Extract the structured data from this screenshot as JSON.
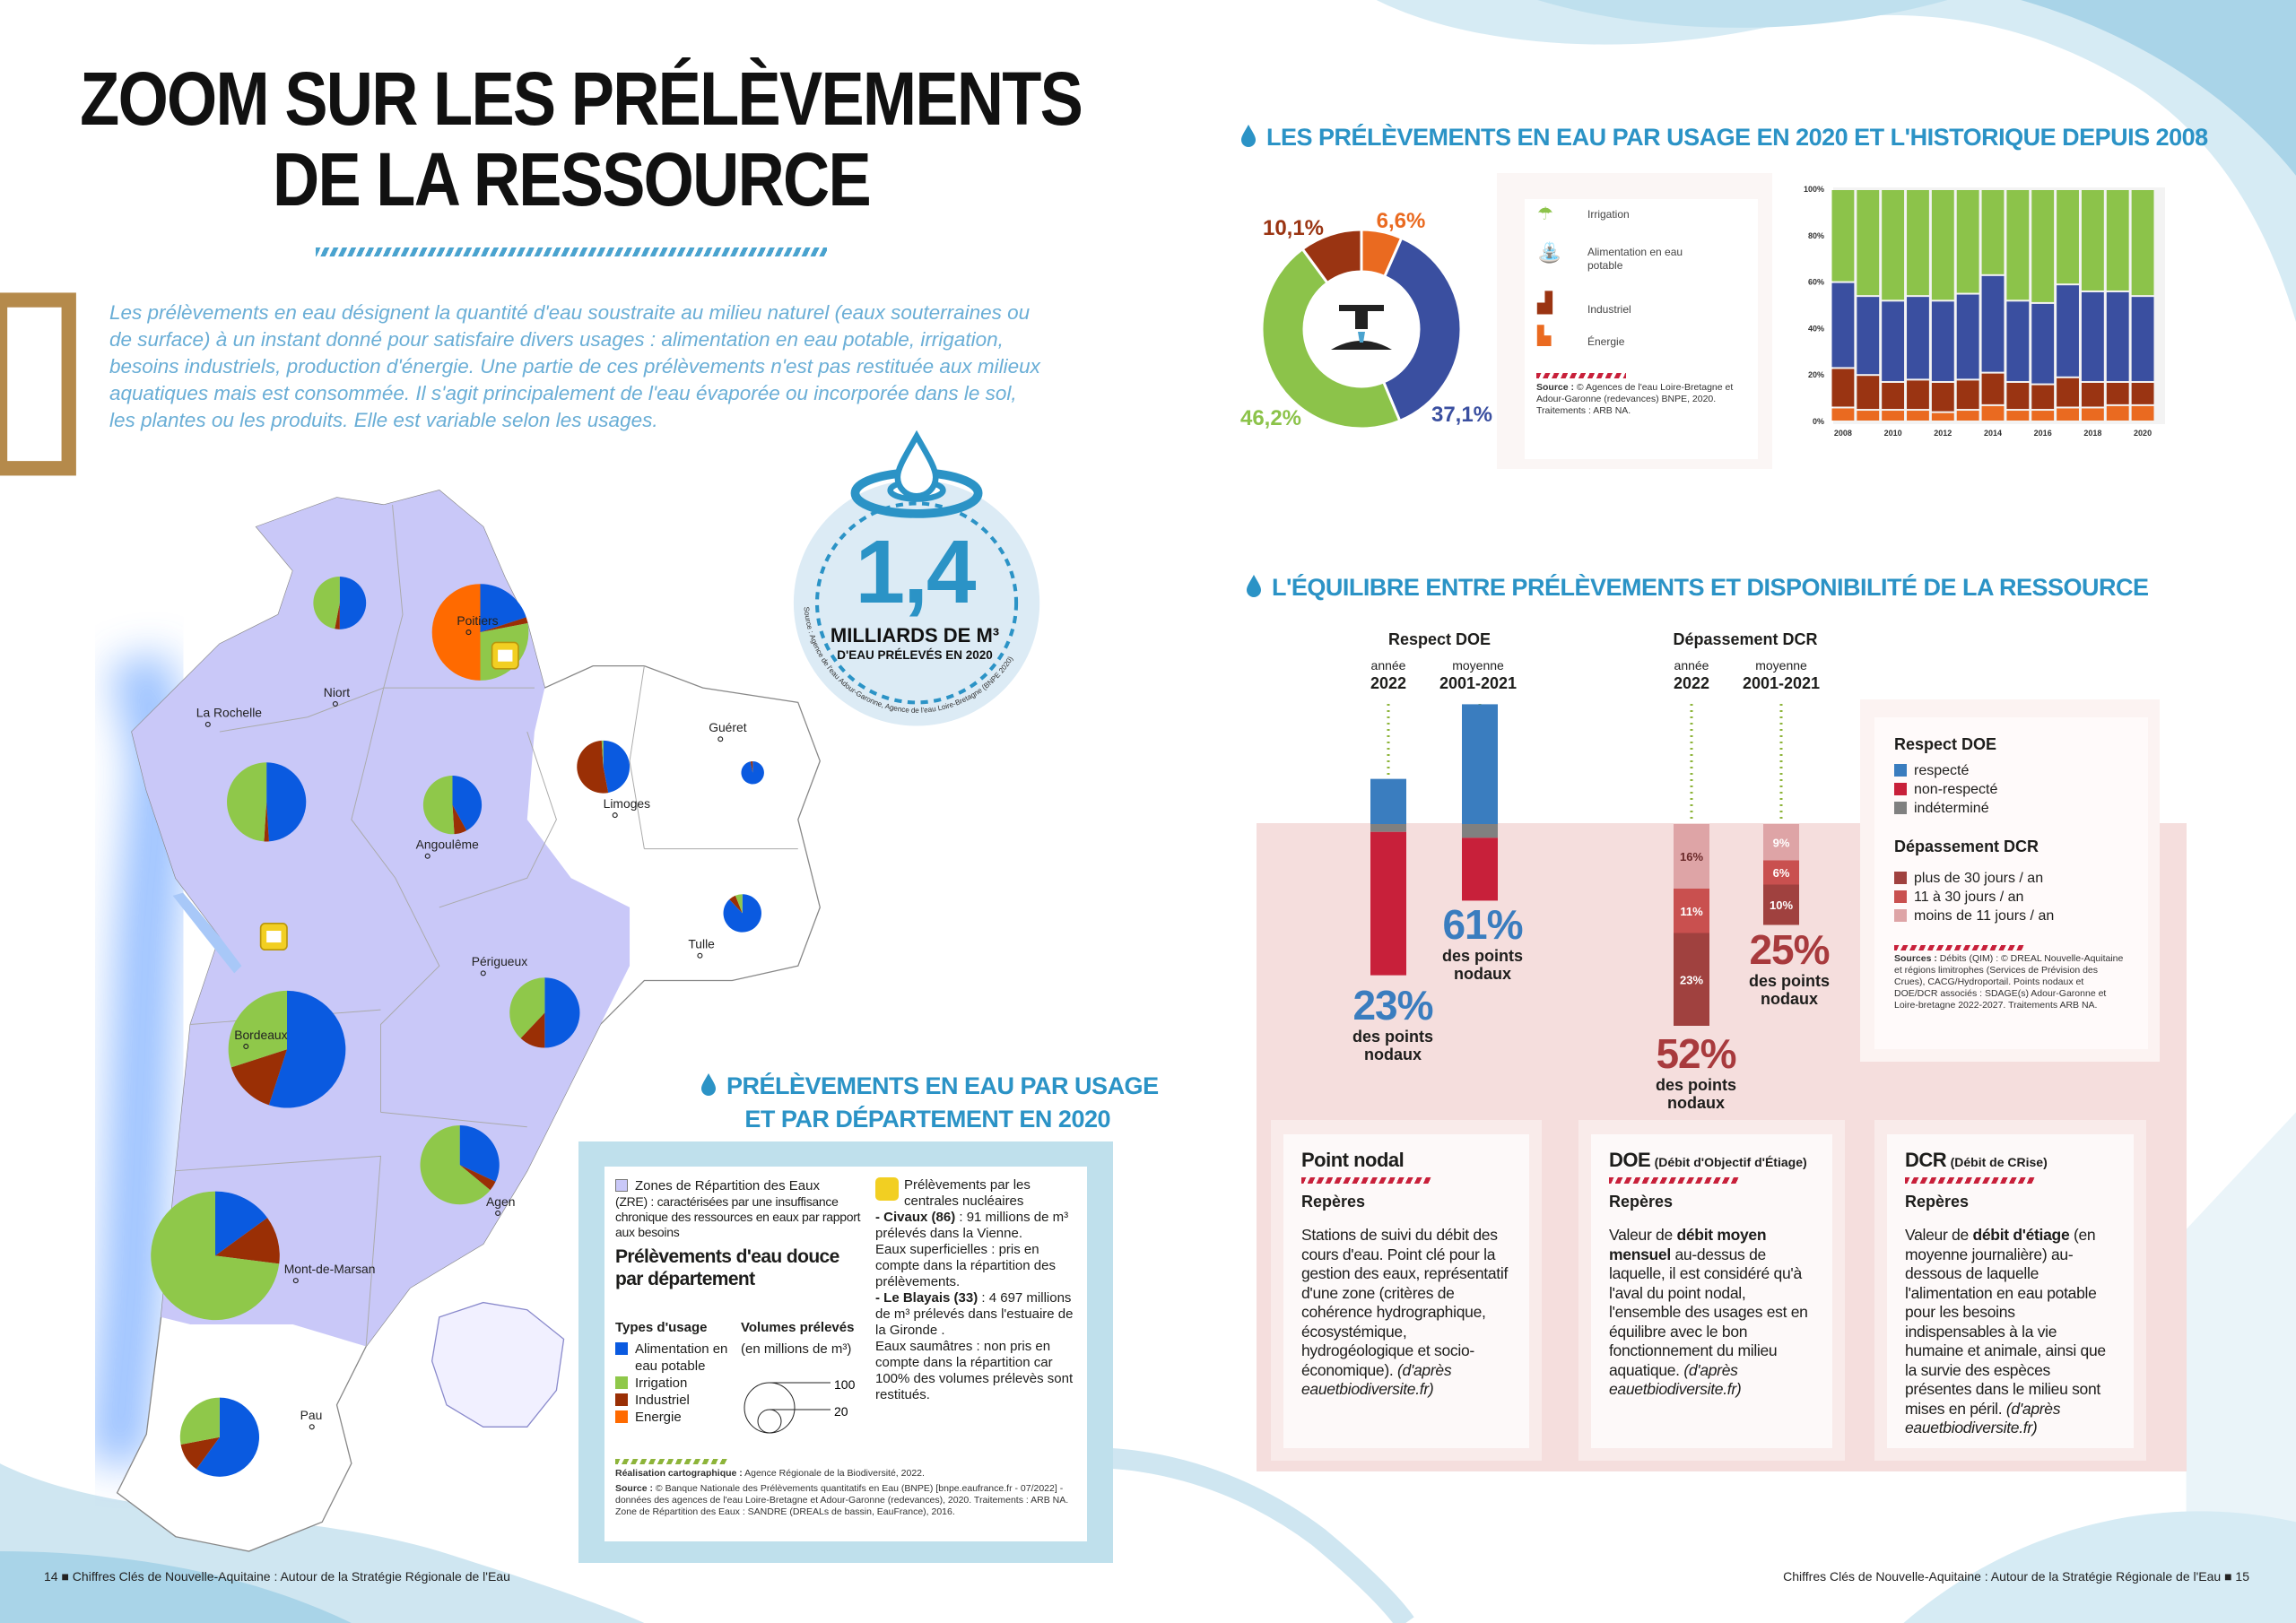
{
  "page_title": [
    "ZOOM SUR LES PRÉLÈVEMENTS",
    "DE LA RESSOURCE"
  ],
  "intro": "Les prélèvements en eau désignent la quantité d'eau soustraite au milieu naturel (eaux souterraines ou de surface) à un instant donné pour satisfaire divers usages : alimentation en eau potable, irrigation, besoins industriels, production d'énergie. Une partie de ces prélèvements n'est pas restituée aux milieux aquatiques mais est consommée. Il s'agit principalement de l'eau évaporée ou incorporée dans le sol, les plantes ou les produits. Elle est variable selon les usages.",
  "key_figure": {
    "value": "1,4",
    "unit": "MILLIARDS DE M³",
    "subtitle": "D'EAU PRÉLEVÉS EN 2020",
    "source": "Source : Agence de l'eau Adour-Garonne, Agence de l'eau Loire-Bretagne (BNPE 2020)"
  },
  "colors": {
    "alimentation": "#0a5ae0",
    "irrigation": "#8fc84a",
    "industriel": "#9a2f05",
    "energie": "#ff6a00",
    "zre": "#c9c8f8",
    "title_blue": "#2b93c6"
  },
  "map": {
    "title": [
      "PRÉLÈVEMENTS EN EAU PAR USAGE",
      "ET PAR DÉPARTEMENT EN 2020"
    ],
    "cities": [
      "Niort",
      "Poitiers",
      "La Rochelle",
      "Angoulême",
      "Limoges",
      "Guéret",
      "Tulle",
      "Périgueux",
      "Bordeaux",
      "Agen",
      "Mont-de-Marsan",
      "Pau"
    ],
    "pies": [
      {
        "city": "Niort",
        "volume": 48,
        "alimentation": 50,
        "industriel": 3,
        "irrigation": 47,
        "energie": 0
      },
      {
        "city": "Poitiers",
        "volume": 161,
        "alimentation": 20,
        "industriel": 2,
        "irrigation": 28,
        "energie": 50
      },
      {
        "city": "La Rochelle",
        "volume": 108,
        "alimentation": 49,
        "industriel": 2,
        "irrigation": 49,
        "energie": 0
      },
      {
        "city": "Angoulême",
        "volume": 59,
        "alimentation": 42,
        "industriel": 7,
        "irrigation": 51,
        "energie": 0
      },
      {
        "city": "Limoges",
        "volume": 48,
        "alimentation": 47,
        "industriel": 52,
        "irrigation": 1,
        "energie": 0
      },
      {
        "city": "Guéret",
        "volume": 9,
        "alimentation": 97,
        "industriel": 3,
        "irrigation": 0,
        "energie": 0
      },
      {
        "city": "Tulle",
        "volume": 25,
        "alimentation": 88,
        "industriel": 6,
        "irrigation": 6,
        "energie": 0
      },
      {
        "city": "Périgueux",
        "volume": 85,
        "alimentation": 50,
        "industriel": 12,
        "irrigation": 38,
        "energie": 0
      },
      {
        "city": "Bordeaux",
        "volume": 237,
        "alimentation": 55,
        "industriel": 15,
        "irrigation": 30,
        "energie": 0
      },
      {
        "city": "Agen",
        "volume": 108,
        "alimentation": 32,
        "industriel": 4,
        "irrigation": 64,
        "energie": 0
      },
      {
        "city": "Mont-de-Marsan",
        "volume": 286,
        "alimentation": 15,
        "industriel": 12,
        "irrigation": 73,
        "energie": 0
      },
      {
        "city": "Pau",
        "volume": 108,
        "alimentation": 60,
        "industriel": 12,
        "irrigation": 28,
        "energie": 0
      }
    ],
    "legend": {
      "zre_title": "Zones de Répartition des Eaux",
      "zre_text": "(ZRE) : caractérisées par une insuffisance chronique des ressources en eaux par rapport aux besoins",
      "heading": "Prélèvements d'eau douce par département",
      "types_label": "Types d'usage",
      "volumes_label": "Volumes prélevés",
      "volumes_unit": "(en millions de m³)",
      "types": [
        "Alimentation en eau potable",
        "Irrigation",
        "Industriel",
        "Energie"
      ],
      "size_values": [
        "100",
        "20"
      ],
      "nuclear_title": "Prélèvements par les centrales nucléaires",
      "civaux_name": "- Civaux (86)",
      "civaux_text": " : 91 millions de m³ prélevés dans la Vienne.",
      "superficielles": "Eaux superficielles : pris en compte dans la répartition des prélèvements.",
      "blayais_name": "- Le Blayais (33)",
      "blayais_text": " : 4 697 millions de m³ prélevés dans l'estuaire de la Gironde .",
      "saumatres": "Eaux saumâtres : non pris en compte dans la répartition car 100% des volumes prélevès sont restitués.",
      "realisation_label": "Réalisation cartographique :",
      "realisation_text": " Agence Régionale de la Biodiversité, 2022.",
      "source_label": "Source :",
      "source_text": " © Banque Nationale des Prélèvements quantitatifs en Eau (BNPE) [bnpe.eaufrance.fr - 07/2022] - données des agences de l'eau Loire-Bretagne et Adour-Garonne (redevances), 2020. Traitements : ARB NA. Zone de Répartition des Eaux : SANDRE (DREALs de bassin, EauFrance), 2016."
    }
  },
  "usage": {
    "title": "LES PRÉLÈVEMENTS EN EAU PAR USAGE EN 2020 ET L'HISTORIQUE DEPUIS 2008",
    "legend": [
      "Irrigation",
      "Alimentation en eau potable",
      "Industriel",
      "Énergie"
    ],
    "source_label": "Source :",
    "source_text": " © Agences de l'eau Loire-Bretagne et Adour-Garonne (redevances) BNPE, 2020. Traitements : ARB NA.",
    "donut_colors": {
      "irrigation": "#8cc34a",
      "alimentation": "#3a4fa0",
      "industriel": "#9a3412",
      "energie": "#ea6a20"
    }
  },
  "chart_data": [
    {
      "type": "pie",
      "variant": "donut",
      "categories": [
        "Énergie",
        "Alimentation en eau potable",
        "Irrigation",
        "Industriel"
      ],
      "values": [
        6.6,
        37.1,
        46.2,
        10.1
      ],
      "labels": [
        "6,6%",
        "37,1%",
        "46,2%",
        "10,1%"
      ]
    },
    {
      "type": "bar",
      "stacked": true,
      "normalized": true,
      "categories": [
        "2008",
        "2009",
        "2010",
        "2011",
        "2012",
        "2013",
        "2014",
        "2015",
        "2016",
        "2017",
        "2018",
        "2019",
        "2020"
      ],
      "tick_labels_x": [
        "2008",
        "2010",
        "2012",
        "2014",
        "2016",
        "2018",
        "2020"
      ],
      "tick_labels_y": [
        "0%",
        "20%",
        "40%",
        "60%",
        "80%",
        "100%"
      ],
      "ylim": [
        0,
        100
      ],
      "series": [
        {
          "name": "Énergie",
          "values": [
            6,
            5,
            5,
            5,
            4,
            5,
            7,
            5,
            5,
            6,
            6,
            7,
            7
          ]
        },
        {
          "name": "Industriel",
          "values": [
            17,
            15,
            12,
            13,
            13,
            13,
            14,
            12,
            11,
            13,
            11,
            10,
            10
          ]
        },
        {
          "name": "Alimentation en eau potable",
          "values": [
            37,
            34,
            35,
            36,
            35,
            37,
            42,
            35,
            35,
            40,
            39,
            39,
            37
          ]
        },
        {
          "name": "Irrigation",
          "values": [
            40,
            46,
            48,
            46,
            48,
            45,
            37,
            48,
            49,
            41,
            44,
            44,
            46
          ]
        }
      ]
    },
    {
      "type": "bar",
      "stacked": true,
      "title": "Respect DOE",
      "categories": [
        "année 2022",
        "moyenne 2001-2021"
      ],
      "series": [
        {
          "name": "respecté",
          "values": [
            23,
            61
          ]
        },
        {
          "name": "indéterminé",
          "values": [
            4,
            7
          ]
        },
        {
          "name": "non-respecté",
          "values": [
            73,
            32
          ]
        }
      ]
    },
    {
      "type": "bar",
      "stacked": true,
      "title": "Dépassement DCR",
      "categories": [
        "année 2022",
        "moyenne 2001-2021"
      ],
      "series": [
        {
          "name": "moins de 11 jours / an",
          "values": [
            16,
            9
          ]
        },
        {
          "name": "11 à 30 jours / an",
          "values": [
            11,
            6
          ]
        },
        {
          "name": "plus de 30 jours / an",
          "values": [
            23,
            10
          ]
        }
      ]
    }
  ],
  "balance": {
    "title": "L'ÉQUILIBRE ENTRE PRÉLÈVEMENTS ET DISPONIBILITÉ DE LA RESSOURCE",
    "doe_title": "Respect DOE",
    "dcr_title": "Dépassement DCR",
    "col_year_small": "année",
    "col_year": "2022",
    "col_avg_small": "moyenne",
    "col_avg": "2001-2021",
    "doe_2022_pct": "23%",
    "doe_avg_pct": "61%",
    "dcr_2022_pct": "52%",
    "dcr_avg_pct": "25%",
    "pct_caption": [
      "des points",
      "nodaux"
    ],
    "dcr_2022_labels": [
      "16%",
      "11%",
      "23%"
    ],
    "dcr_avg_labels": [
      "9%",
      "6%",
      "10%"
    ],
    "colors": {
      "respecte": "#3a7dbf",
      "non_respecte": "#c8203a",
      "indetermine": "#808080",
      "dcr_high": "#a0413f",
      "dcr_mid": "#c9504f",
      "dcr_low": "#dea4a6",
      "dcr_text": "#a83a3d"
    },
    "legend": {
      "doe_title": "Respect DOE",
      "doe_items": [
        "respecté",
        "non-respecté",
        "indéterminé"
      ],
      "dcr_title": "Dépassement DCR",
      "dcr_items": [
        "plus de 30 jours / an",
        "11 à 30 jours / an",
        "moins de 11 jours / an"
      ],
      "source_label": "Sources :",
      "source_text": " Débits (QIM) : © DREAL Nouvelle-Aquitaine et régions limitrophes (Services de Prévision des Crues), CACG/Hydroportail. Points nodaux et DOE/DCR associés : SDAGE(s) Adour-Garonne et Loire-bretagne 2022-2027. Traitements ARB NA."
    },
    "cards": [
      {
        "title": "Point nodal",
        "title_small": "",
        "sub": "Repères",
        "text_parts": [
          [
            "Stations de suivi du débit des cours d'eau. Point clé pour la gestion des eaux, représentatif d'une zone (critères de cohérence hydrographique, écosystémique, hydrogéologique et socio-économique). ",
            ""
          ]
        ],
        "plain": "Stations de suivi du débit des cours d'eau. Point clé pour la gestion des eaux, représentatif d'une zone (critères de cohérence hydrographique, écosystémique, hydrogéologique et socio-économique). ",
        "bold": "",
        "after": "",
        "italic": "(d'après eauetbiodiversite.fr)"
      },
      {
        "title": "DOE",
        "title_small": "(Débit d'Objectif d'Étiage)",
        "sub": "Repères",
        "plain": "Valeur de ",
        "bold": "débit moyen mensuel",
        "after": " au-dessus de laquelle, il est considéré qu'à l'aval du point nodal, l'ensemble des usages est en équilibre avec le bon fonctionnement du milieu aquatique. ",
        "italic": "(d'après eauetbiodiversite.fr)"
      },
      {
        "title": "DCR",
        "title_small": "(Débit de CRise)",
        "sub": "Repères",
        "plain": "Valeur de ",
        "bold": "débit d'étiage",
        "after": " (en moyenne journalière) au-dessous de laquelle l'alimentation en eau potable pour les besoins indispensables à la vie humaine et animale, ainsi que la survie des espèces présentes dans le milieu sont mises en péril. ",
        "italic": "(d'après eauetbiodiversite.fr)"
      }
    ]
  },
  "footer": {
    "left": "14 ■ Chiffres Clés de Nouvelle-Aquitaine : Autour de la Stratégie Régionale de l'Eau",
    "right": "Chiffres Clés de Nouvelle-Aquitaine : Autour de la Stratégie Régionale de l'Eau ■ 15"
  }
}
